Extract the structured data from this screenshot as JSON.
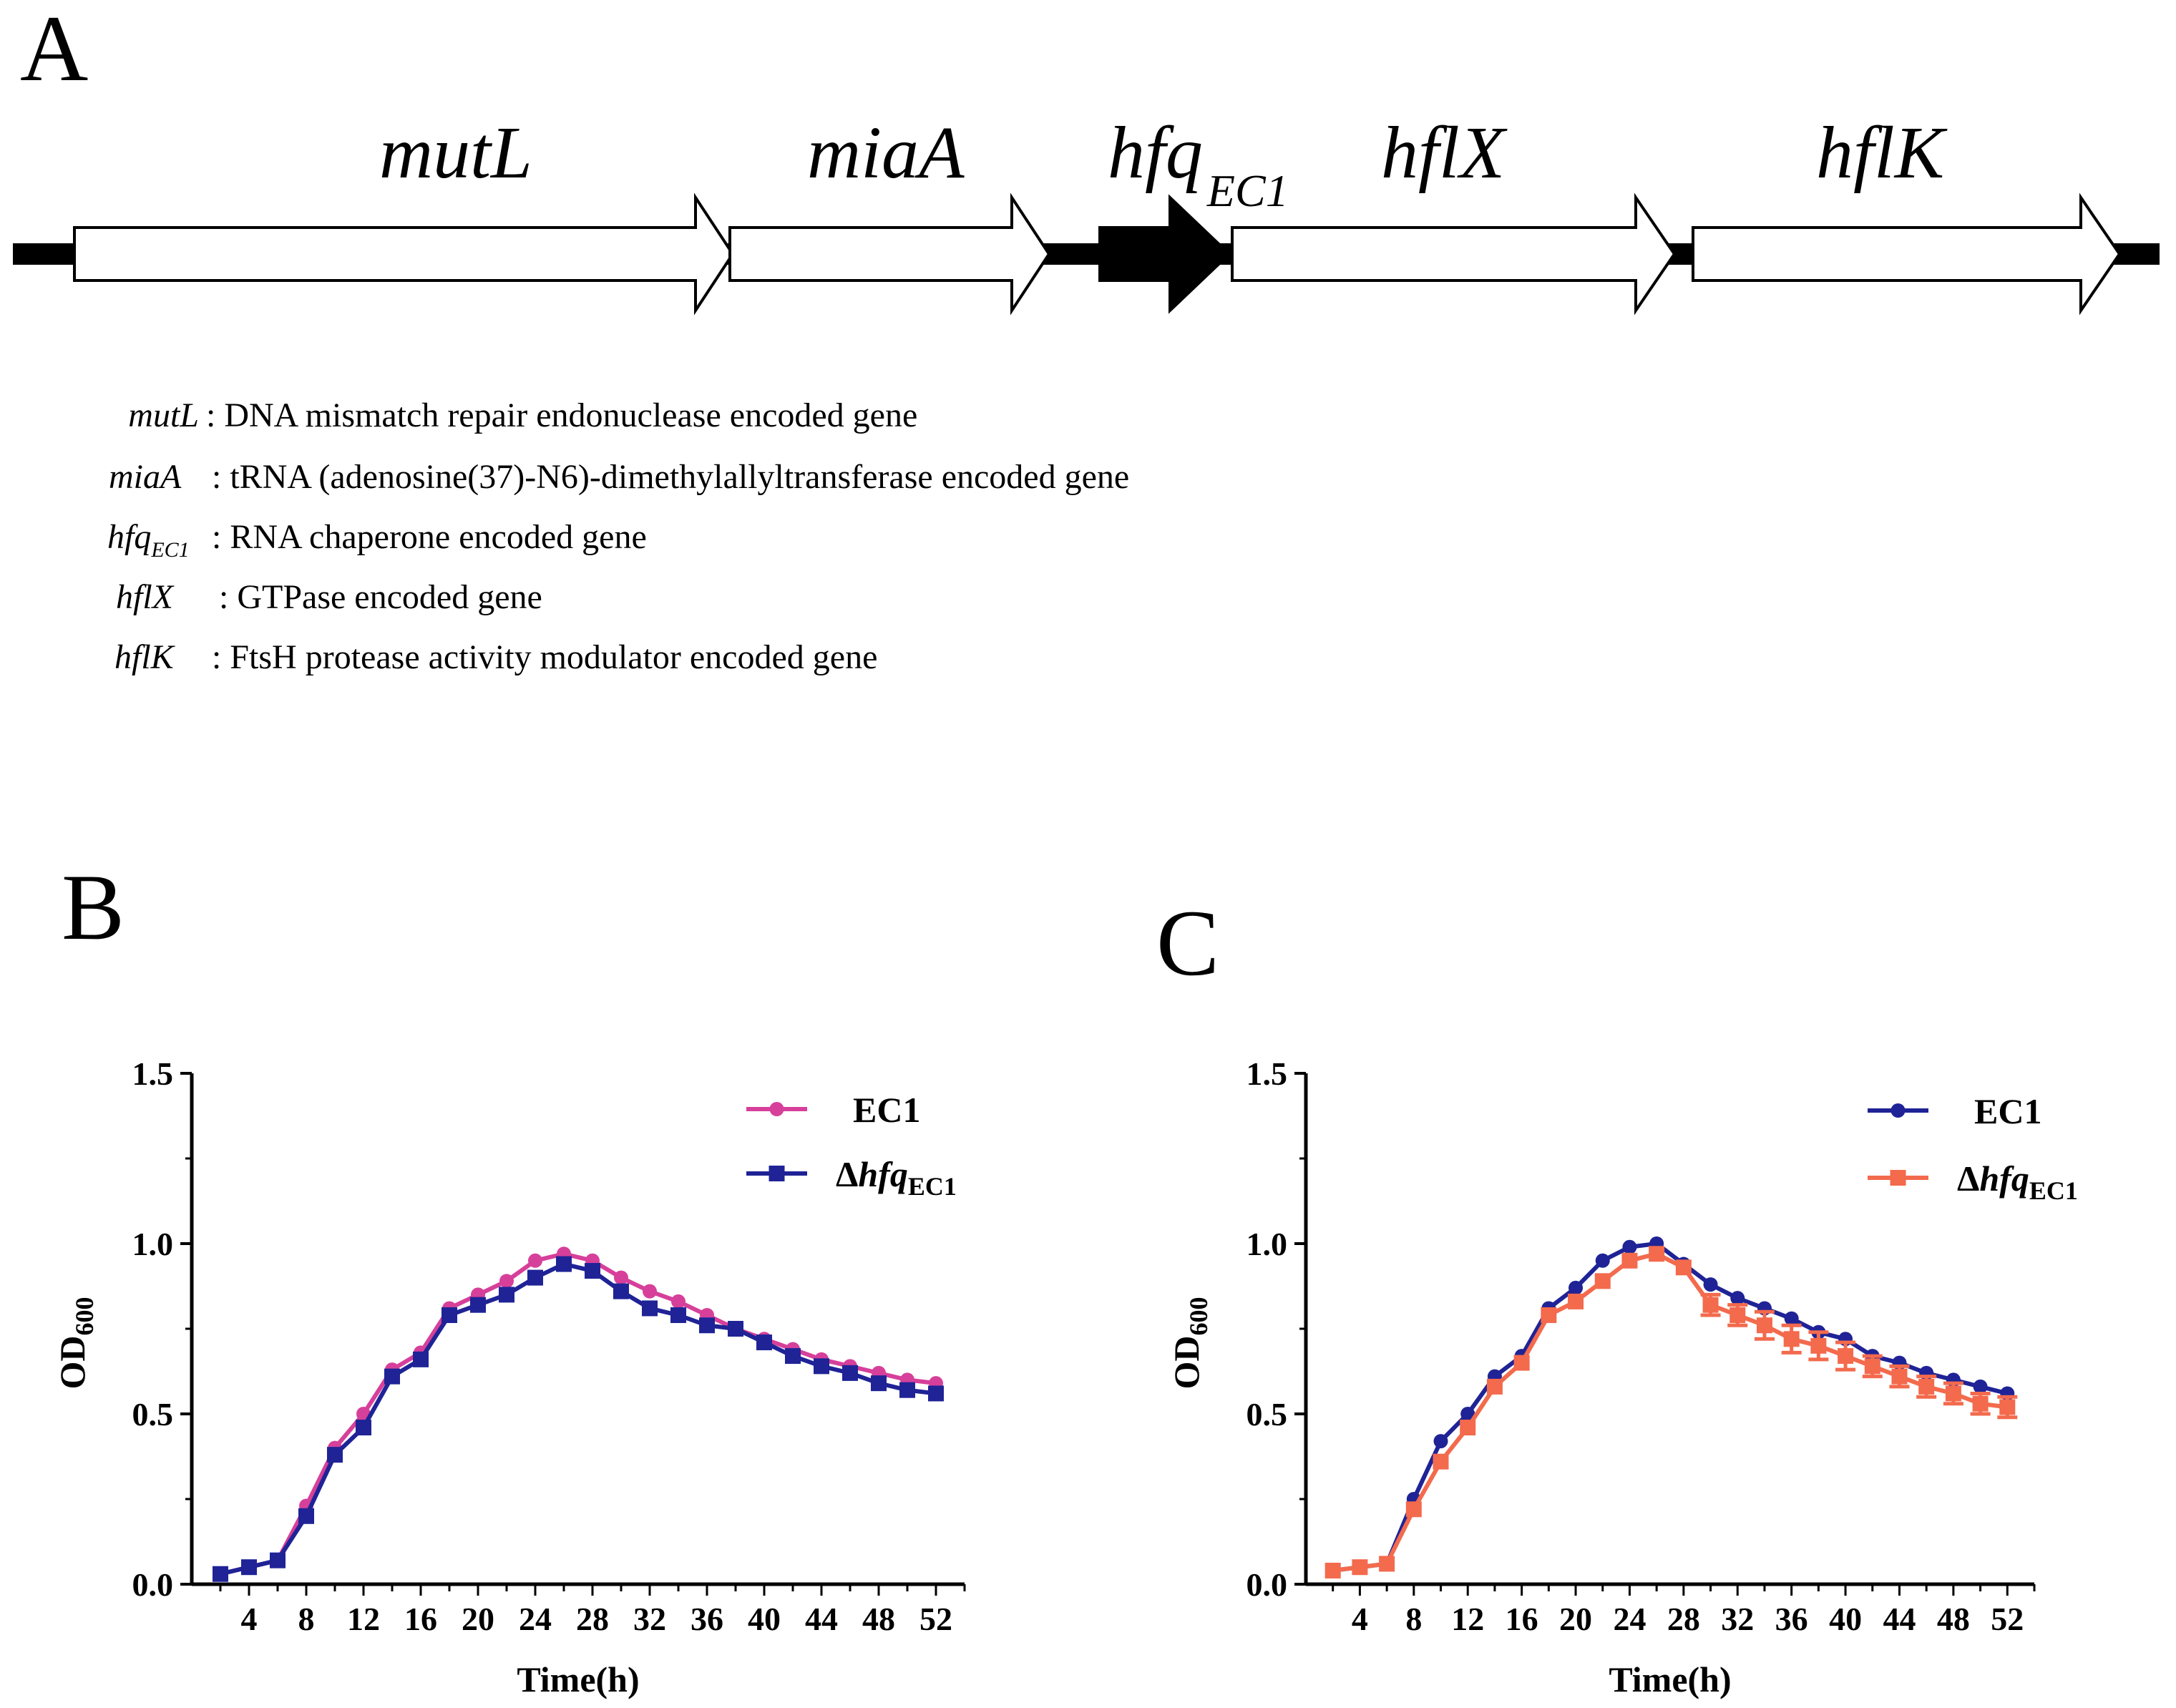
{
  "panel_a": {
    "letter": "A",
    "genes": [
      {
        "name": "mutL",
        "sub": ""
      },
      {
        "name": "miaA",
        "sub": ""
      },
      {
        "name": "hfq",
        "sub": "EC1"
      },
      {
        "name": "hflX",
        "sub": ""
      },
      {
        "name": "hflK",
        "sub": ""
      }
    ],
    "gene_colors": {
      "open": "#ffffff",
      "target": "#000000"
    },
    "legend": [
      {
        "term": "mutL",
        "sub": "",
        "desc": ": DNA mismatch repair endonuclease encoded gene"
      },
      {
        "term": "miaA",
        "sub": "",
        "desc": ": tRNA (adenosine(37)-N6)-dimethylallyltransferase encoded gene"
      },
      {
        "term": "hfq",
        "sub": "EC1",
        "desc": ": RNA chaperone encoded gene"
      },
      {
        "term": "hflX",
        "sub": "",
        "desc": ": GTPase encoded gene"
      },
      {
        "term": "hflK",
        "sub": "",
        "desc": ": FtsH protease activity modulator encoded gene"
      }
    ]
  },
  "chart_data": [
    {
      "panel": "B",
      "type": "line",
      "xlabel": "Time(h)",
      "ylabel": "OD",
      "ylabel_sub": "600",
      "xticks": [
        4,
        8,
        12,
        16,
        20,
        24,
        28,
        32,
        36,
        40,
        44,
        48,
        52
      ],
      "yticks": [
        "0.0",
        "0.5",
        "1.0",
        "1.5"
      ],
      "xlim": [
        0,
        54
      ],
      "ylim": [
        0,
        1.5
      ],
      "x": [
        2,
        4,
        6,
        8,
        10,
        12,
        14,
        16,
        18,
        20,
        22,
        24,
        26,
        28,
        30,
        32,
        34,
        36,
        38,
        40,
        42,
        44,
        46,
        48,
        50,
        52
      ],
      "legend_position": "top-right",
      "series": [
        {
          "name": "EC1",
          "name_sub": "",
          "italic_name": false,
          "color": "#d6409a",
          "marker": "circle",
          "values": [
            0.03,
            0.05,
            0.07,
            0.23,
            0.4,
            0.5,
            0.63,
            0.68,
            0.81,
            0.85,
            0.89,
            0.95,
            0.97,
            0.95,
            0.9,
            0.86,
            0.83,
            0.79,
            0.75,
            0.72,
            0.69,
            0.66,
            0.64,
            0.62,
            0.6,
            0.59
          ]
        },
        {
          "name": "Δhfq",
          "name_sub": "EC1",
          "italic_name": true,
          "color": "#1f2396",
          "marker": "square",
          "values": [
            0.03,
            0.05,
            0.07,
            0.2,
            0.38,
            0.46,
            0.61,
            0.66,
            0.79,
            0.82,
            0.85,
            0.9,
            0.94,
            0.92,
            0.86,
            0.81,
            0.79,
            0.76,
            0.75,
            0.71,
            0.67,
            0.64,
            0.62,
            0.59,
            0.57,
            0.56
          ]
        }
      ]
    },
    {
      "panel": "C",
      "type": "line",
      "xlabel": "Time(h)",
      "ylabel": "OD",
      "ylabel_sub": "600",
      "xticks": [
        4,
        8,
        12,
        16,
        20,
        24,
        28,
        32,
        36,
        40,
        44,
        48,
        52
      ],
      "yticks": [
        "0.0",
        "0.5",
        "1.0",
        "1.5"
      ],
      "xlim": [
        0,
        54
      ],
      "ylim": [
        0,
        1.5
      ],
      "x": [
        2,
        4,
        6,
        8,
        10,
        12,
        14,
        16,
        18,
        20,
        22,
        24,
        26,
        28,
        30,
        32,
        34,
        36,
        38,
        40,
        42,
        44,
        46,
        48,
        50,
        52
      ],
      "legend_position": "top-right",
      "series": [
        {
          "name": "EC1",
          "name_sub": "",
          "italic_name": false,
          "color": "#1f2396",
          "marker": "circle",
          "values": [
            0.04,
            0.05,
            0.06,
            0.25,
            0.42,
            0.5,
            0.61,
            0.67,
            0.81,
            0.87,
            0.95,
            0.99,
            1.0,
            0.94,
            0.88,
            0.84,
            0.81,
            0.78,
            0.74,
            0.72,
            0.67,
            0.65,
            0.62,
            0.6,
            0.58,
            0.56
          ]
        },
        {
          "name": "Δhfq",
          "name_sub": "EC1",
          "italic_name": true,
          "color": "#f36a4d",
          "marker": "square",
          "values": [
            0.04,
            0.05,
            0.06,
            0.22,
            0.36,
            0.46,
            0.58,
            0.65,
            0.79,
            0.83,
            0.89,
            0.95,
            0.97,
            0.93,
            0.82,
            0.79,
            0.76,
            0.72,
            0.7,
            0.67,
            0.64,
            0.61,
            0.58,
            0.56,
            0.53,
            0.52
          ],
          "errors": [
            0,
            0,
            0,
            0,
            0,
            0,
            0,
            0,
            0,
            0,
            0,
            0,
            0,
            0,
            0.03,
            0.03,
            0.04,
            0.04,
            0.04,
            0.04,
            0.03,
            0.03,
            0.03,
            0.03,
            0.03,
            0.03
          ]
        }
      ]
    }
  ]
}
